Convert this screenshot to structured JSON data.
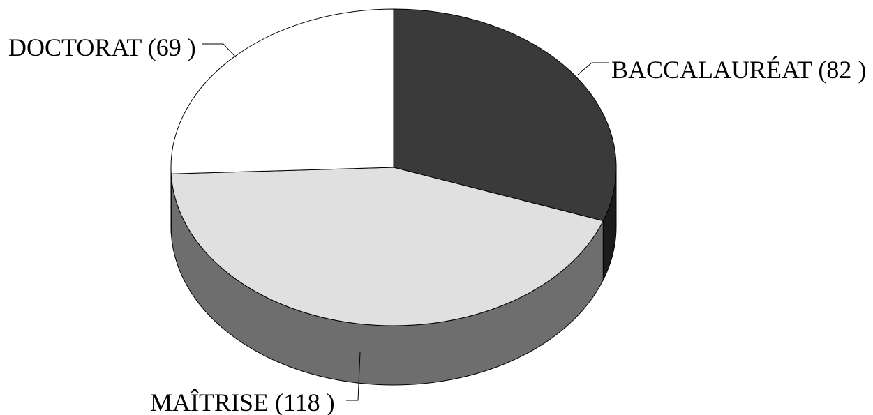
{
  "chart_data": {
    "type": "pie",
    "style": "3d",
    "title": "",
    "slices": [
      {
        "label": "BACCALAURÉAT (82 )",
        "category": "BACCALAURÉAT",
        "value": 82,
        "top_color": "#3a3a3a",
        "side_color": "#1c1c1c"
      },
      {
        "label": "MAÎTRISE (118 )",
        "category": "MAÎTRISE",
        "value": 118,
        "top_color": "#e0e0e0",
        "side_color": "#6e6e6e"
      },
      {
        "label": "DOCTORAT (69 )",
        "category": "DOCTORAT",
        "value": 69,
        "top_color": "#ffffff",
        "side_color": "#bdbdbd"
      }
    ],
    "start_angle": "12 o'clock",
    "direction": "clockwise",
    "legend": "none"
  }
}
